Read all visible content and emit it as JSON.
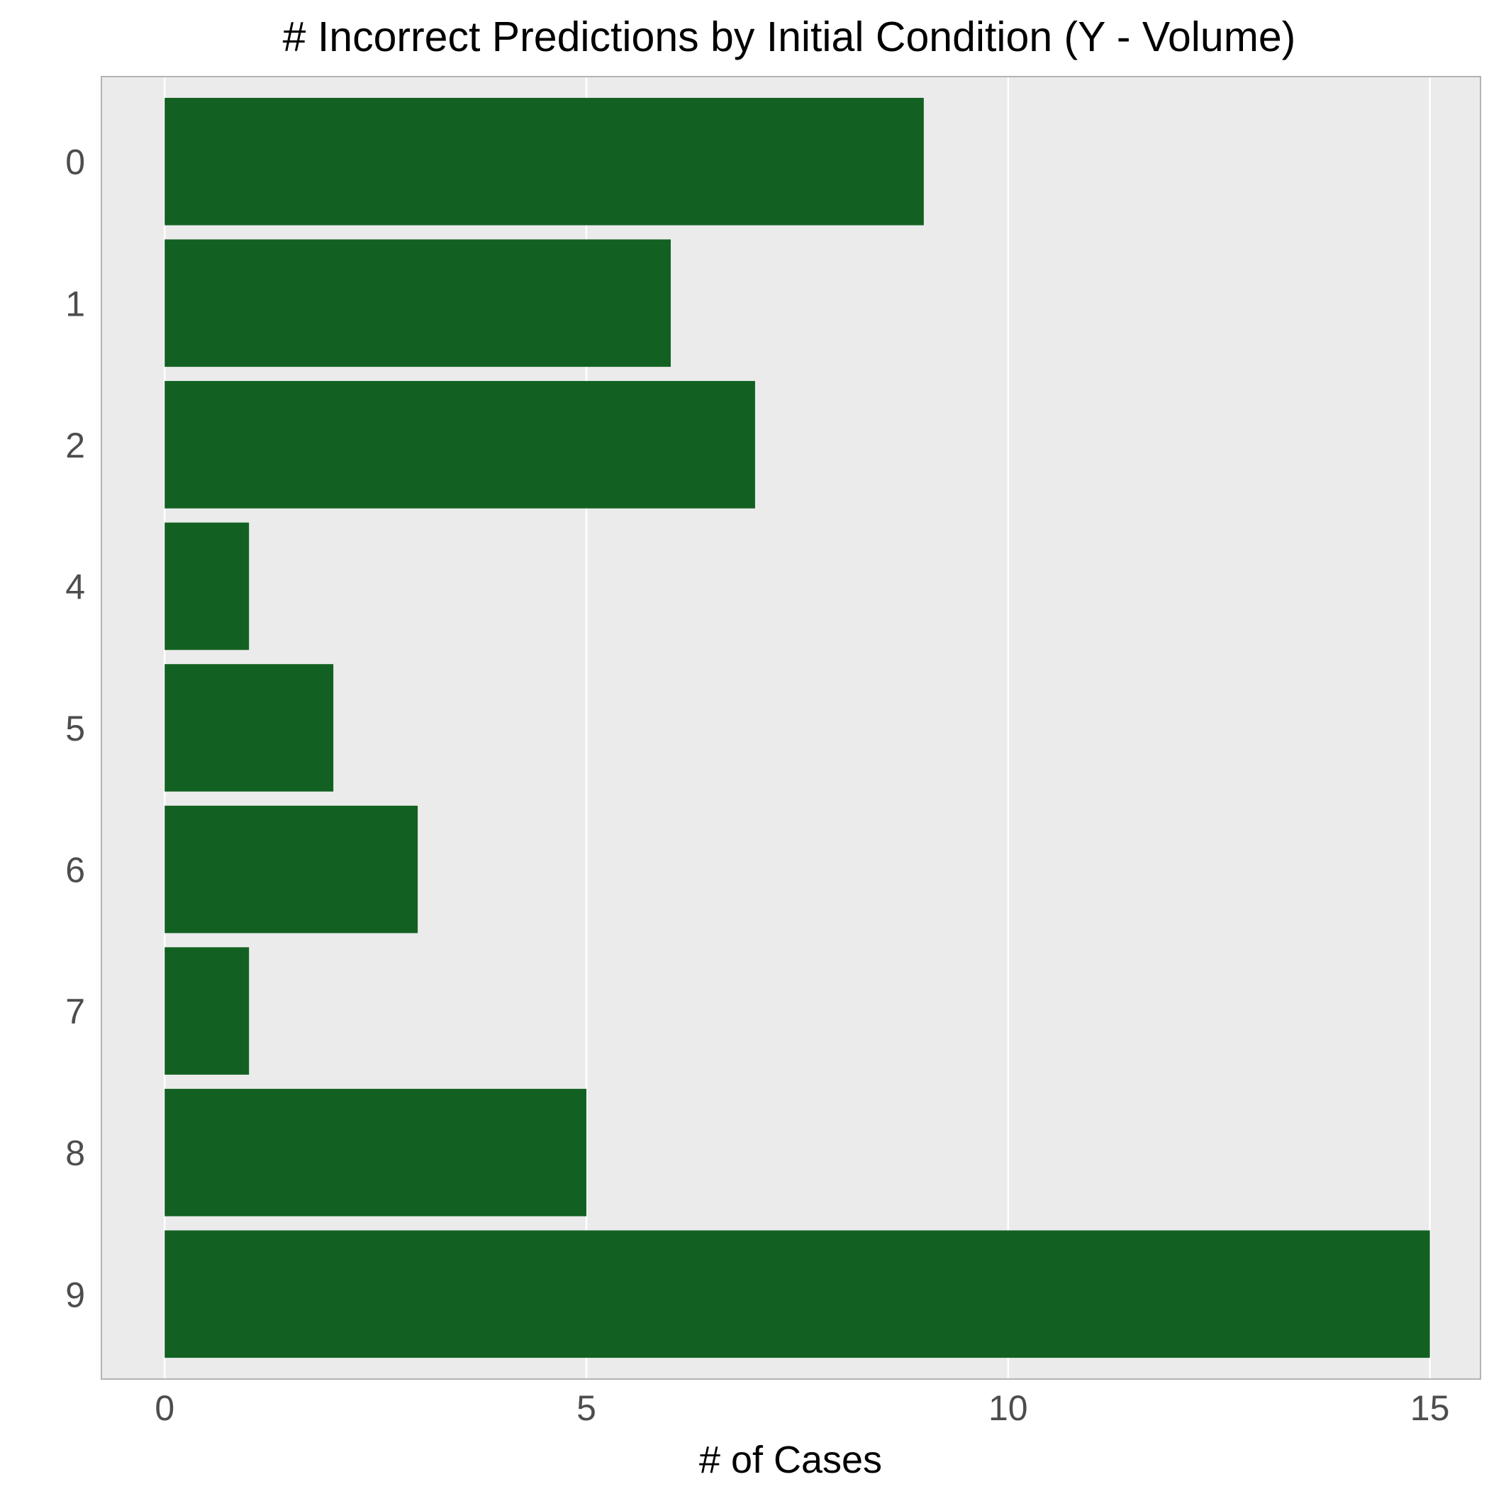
{
  "chart_data": {
    "type": "bar",
    "orientation": "horizontal",
    "title": "# Incorrect Predictions by Initial Condition (Y - Volume)",
    "xlabel": "# of Cases",
    "ylabel": "",
    "categories": [
      "0",
      "1",
      "2",
      "4",
      "5",
      "6",
      "7",
      "8",
      "9"
    ],
    "values": [
      9,
      6,
      7,
      1,
      2,
      3,
      1,
      5,
      15
    ],
    "xlim": [
      -0.75,
      15.6
    ],
    "x_ticks": [
      0,
      5,
      10,
      15
    ],
    "grid": true,
    "bar_color": "#136122",
    "panel_background": "#ebebeb",
    "grid_color": "#ffffff"
  }
}
